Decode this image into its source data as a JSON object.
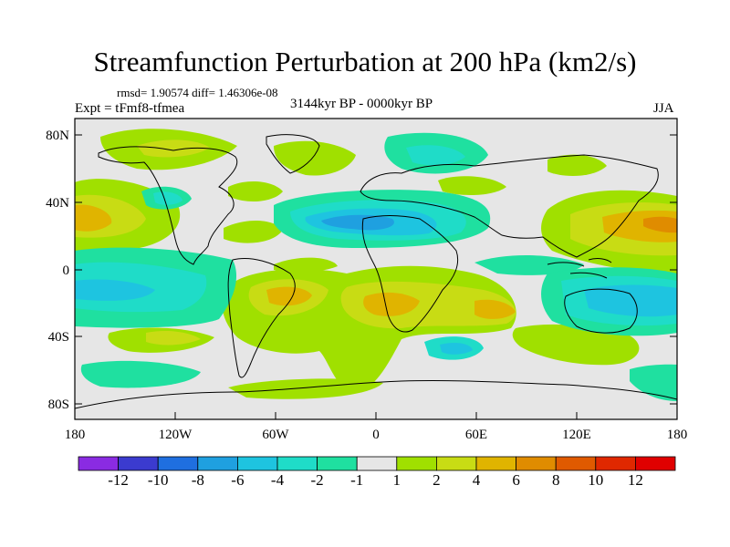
{
  "title": "Streamfunction Perturbation at 200 hPa (km2/s)",
  "stats_text": "rmsd= 1.90574 diff= 1.46306e-08",
  "experiment": "Expt = tFmf8-tfmea",
  "period": "3144kyr BP - 0000kyr BP",
  "season": "JJA",
  "map": {
    "lat_ticks": [
      "80N",
      "40N",
      "0",
      "40S",
      "80S"
    ],
    "lon_ticks": [
      "180",
      "120W",
      "60W",
      "0",
      "60E",
      "120E",
      "180"
    ]
  },
  "colorbar": {
    "labels": [
      "-12",
      "-10",
      "-8",
      "-6",
      "-4",
      "-2",
      "-1",
      "1",
      "2",
      "4",
      "6",
      "8",
      "10",
      "12"
    ],
    "colors": [
      "#8a2be2",
      "#3b3bcf",
      "#1f6fe0",
      "#1fa0e0",
      "#1ec4e0",
      "#1fdcc8",
      "#1fe0a0",
      "#e6e6e6",
      "#a0e000",
      "#c8dc14",
      "#e0b400",
      "#e08c00",
      "#e05a00",
      "#e02800",
      "#e00000"
    ]
  },
  "colors": {
    "ocean_bg": "#e6e6e6",
    "coast": "#000000"
  }
}
